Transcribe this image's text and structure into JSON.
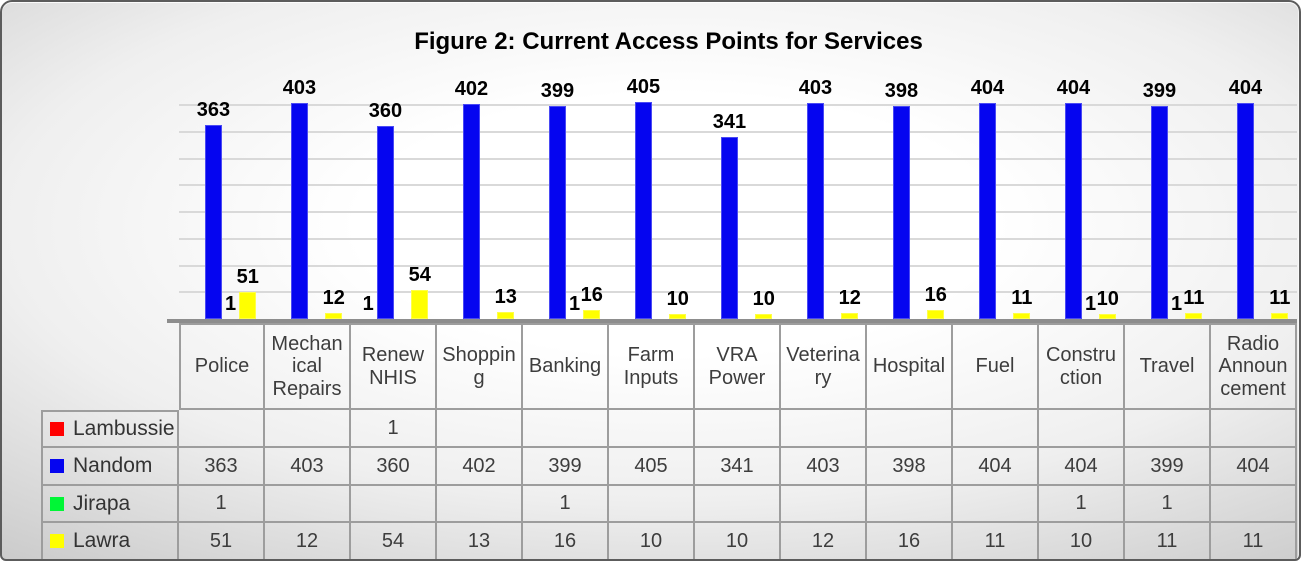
{
  "chart_data": {
    "type": "bar",
    "title": "Figure 2: Current Access Points for Services",
    "categories": [
      "Police",
      "Mechanical Repairs",
      "Renew NHIS",
      "Shopping",
      "Banking",
      "Farm Inputs",
      "VRA Power",
      "Veterinary",
      "Hospital",
      "Fuel",
      "Construction",
      "Travel",
      "Radio Announcement"
    ],
    "series": [
      {
        "name": "Lambussie",
        "color": "#ff0000",
        "values": [
          null,
          null,
          1,
          null,
          null,
          null,
          null,
          null,
          null,
          null,
          null,
          null,
          null
        ]
      },
      {
        "name": "Nandom",
        "color": "#0505f0",
        "values": [
          363,
          403,
          360,
          402,
          399,
          405,
          341,
          403,
          398,
          404,
          404,
          399,
          404
        ]
      },
      {
        "name": "Jirapa",
        "color": "#00f636",
        "values": [
          1,
          null,
          null,
          null,
          1,
          null,
          null,
          null,
          null,
          null,
          1,
          1,
          null
        ]
      },
      {
        "name": "Lawra",
        "color": "#ffff00",
        "values": [
          51,
          12,
          54,
          13,
          16,
          10,
          10,
          12,
          16,
          11,
          10,
          11,
          11
        ]
      }
    ],
    "ylim": [
      0,
      450
    ],
    "gridline_step": 50,
    "gridline_max": 400,
    "grid": true,
    "data_labels": true,
    "legend_position": "table-left"
  },
  "table": {
    "header_labels": [
      "Police",
      "Mechan\nical\nRepairs",
      "Renew\nNHIS",
      "Shoppin\ng",
      "Banking",
      "Farm\nInputs",
      "VRA\nPower",
      "Veterina\nry",
      "Hospital",
      "Fuel",
      "Constru\nction",
      "Travel",
      "Radio\nAnnoun\ncement"
    ]
  },
  "colors": {
    "gridline": "#d9d9d9",
    "axis": "#8d8d8d",
    "table_border": "#9d9d9d",
    "table_text": "#3d3d3d"
  }
}
